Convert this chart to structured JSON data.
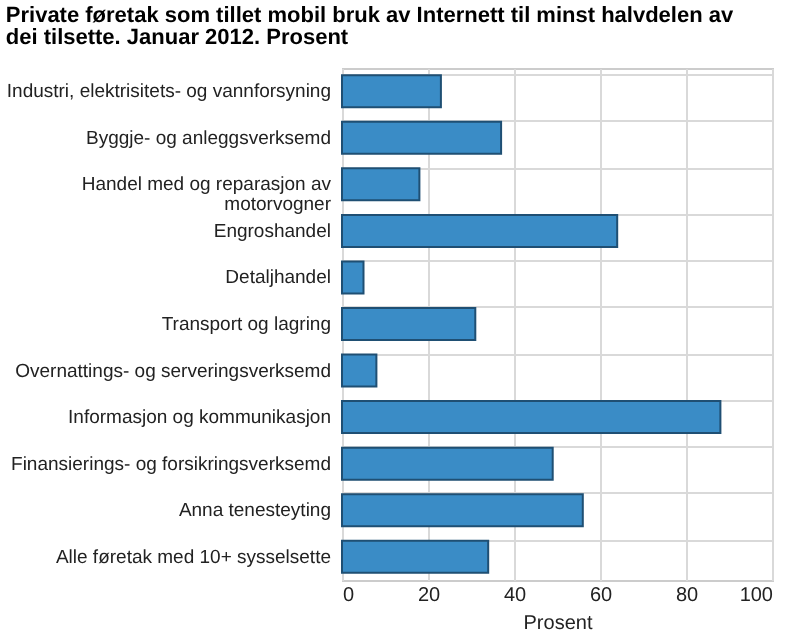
{
  "chart_data": {
    "type": "bar",
    "orientation": "horizontal",
    "title": "Private føretak som tillet mobil bruk av Internett til minst halvdelen av\ndei tilsette. Januar 2012. Prosent",
    "categories": [
      "Industri, elektrisitets- og vannforsyning",
      "Byggje- og anleggsverksemd",
      "Handel med og reparasjon av\nmotorvogner",
      "Engroshandel",
      "Detaljhandel",
      "Transport og lagring",
      "Overnattings- og serveringsverksemd",
      "Informasjon og kommunikasjon",
      "Finansierings- og forsikringsverksemd",
      "Anna tenesteyting",
      "Alle føretak med 10+ sysselsette"
    ],
    "values": [
      23,
      37,
      18,
      64,
      5,
      31,
      8,
      88,
      49,
      56,
      34
    ],
    "color": "#3a8cc6",
    "xlabel": "Prosent",
    "xlim": [
      0,
      100
    ],
    "xticks": [
      0,
      20,
      40,
      60,
      80,
      100
    ],
    "grid": true
  }
}
